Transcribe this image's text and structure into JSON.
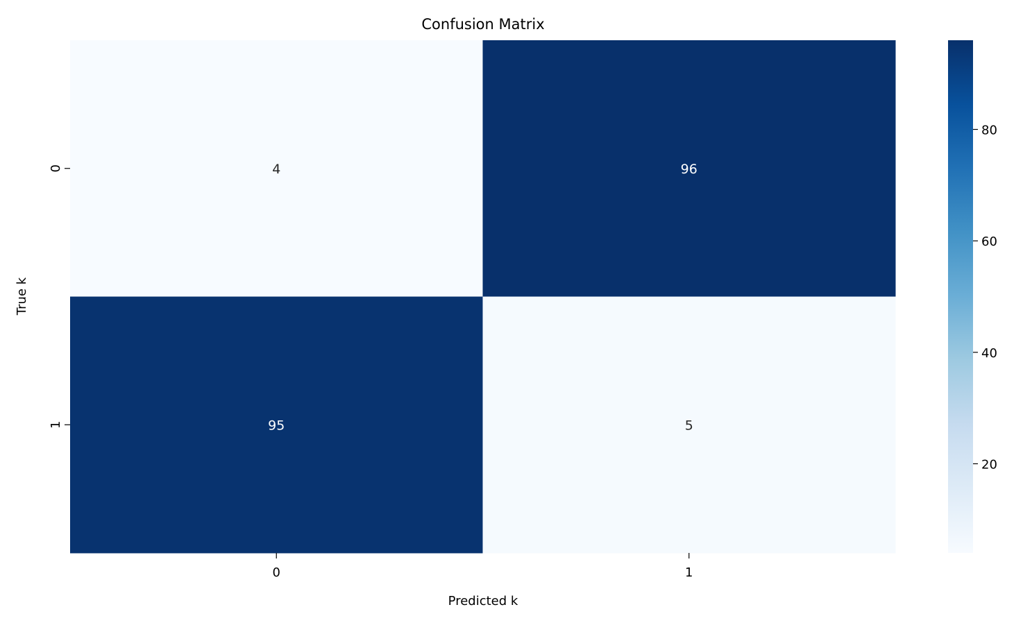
{
  "chart_data": {
    "type": "heatmap",
    "title": "Confusion Matrix",
    "xlabel": "Predicted k",
    "ylabel": "True k",
    "x_categories": [
      "0",
      "1"
    ],
    "y_categories": [
      "0",
      "1"
    ],
    "values": [
      [
        4,
        96
      ],
      [
        95,
        5
      ]
    ],
    "colormap": "Blues",
    "colormap_stops": [
      "#f7fbff",
      "#deebf7",
      "#c6dbef",
      "#9ecae1",
      "#6baed6",
      "#4292c6",
      "#2171b5",
      "#08519c",
      "#08306b"
    ],
    "color_range": [
      4,
      96
    ],
    "colorbar_ticks": [
      "20",
      "40",
      "60",
      "80"
    ],
    "annotation_colors": {
      "light": "#ffffff",
      "dark": "#262626"
    }
  }
}
